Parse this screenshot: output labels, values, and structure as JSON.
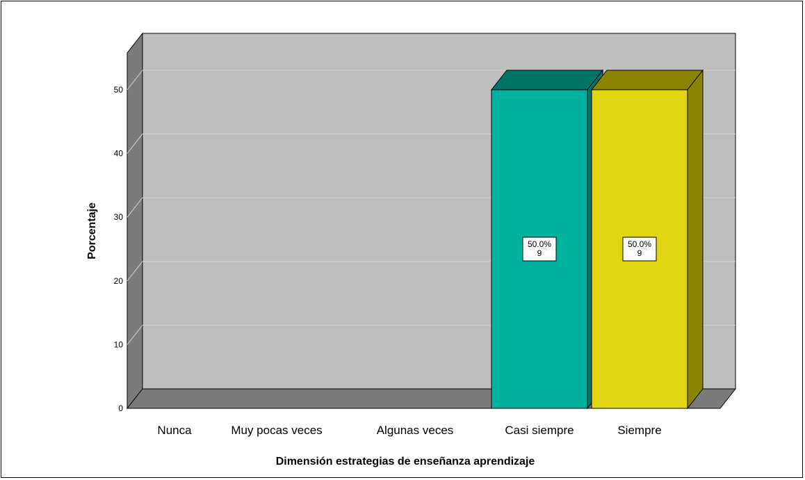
{
  "chart_data": {
    "type": "bar",
    "categories": [
      "Nunca",
      "Muy pocas veces",
      "Algunas veces",
      "Casi siempre",
      "Siempre"
    ],
    "values": [
      0,
      0,
      0,
      50.0,
      50.0
    ],
    "counts": [
      0,
      0,
      0,
      9,
      9
    ],
    "data_labels": [
      {
        "percent": "",
        "count": ""
      },
      {
        "percent": "",
        "count": ""
      },
      {
        "percent": "",
        "count": ""
      },
      {
        "percent": "50.0%",
        "count": "9"
      },
      {
        "percent": "50.0%",
        "count": "9"
      }
    ],
    "xlabel": "Dimensión estrategias de enseñanza aprendizaje",
    "ylabel": "Porcentaje",
    "ylim": [
      0,
      55
    ],
    "yticks": [
      0,
      10,
      20,
      30,
      40,
      50
    ],
    "grid": true,
    "three_d": true,
    "colors": {
      "wall": "#bebebe",
      "side_wall": "#7b7b7b",
      "floor": "#7b7b7b",
      "gridline": "#d4d4d4",
      "bars": [
        "#00b3a0",
        "#00b3a0",
        "#00b3a0",
        "#00b3a0",
        "#e2d511"
      ],
      "bar_tops": [
        "#007567",
        "#007567",
        "#007567",
        "#007567",
        "#8b8400"
      ],
      "bar_sides": [
        "#00756a",
        "#00756a",
        "#00756a",
        "#00756a",
        "#8b8400"
      ]
    }
  }
}
